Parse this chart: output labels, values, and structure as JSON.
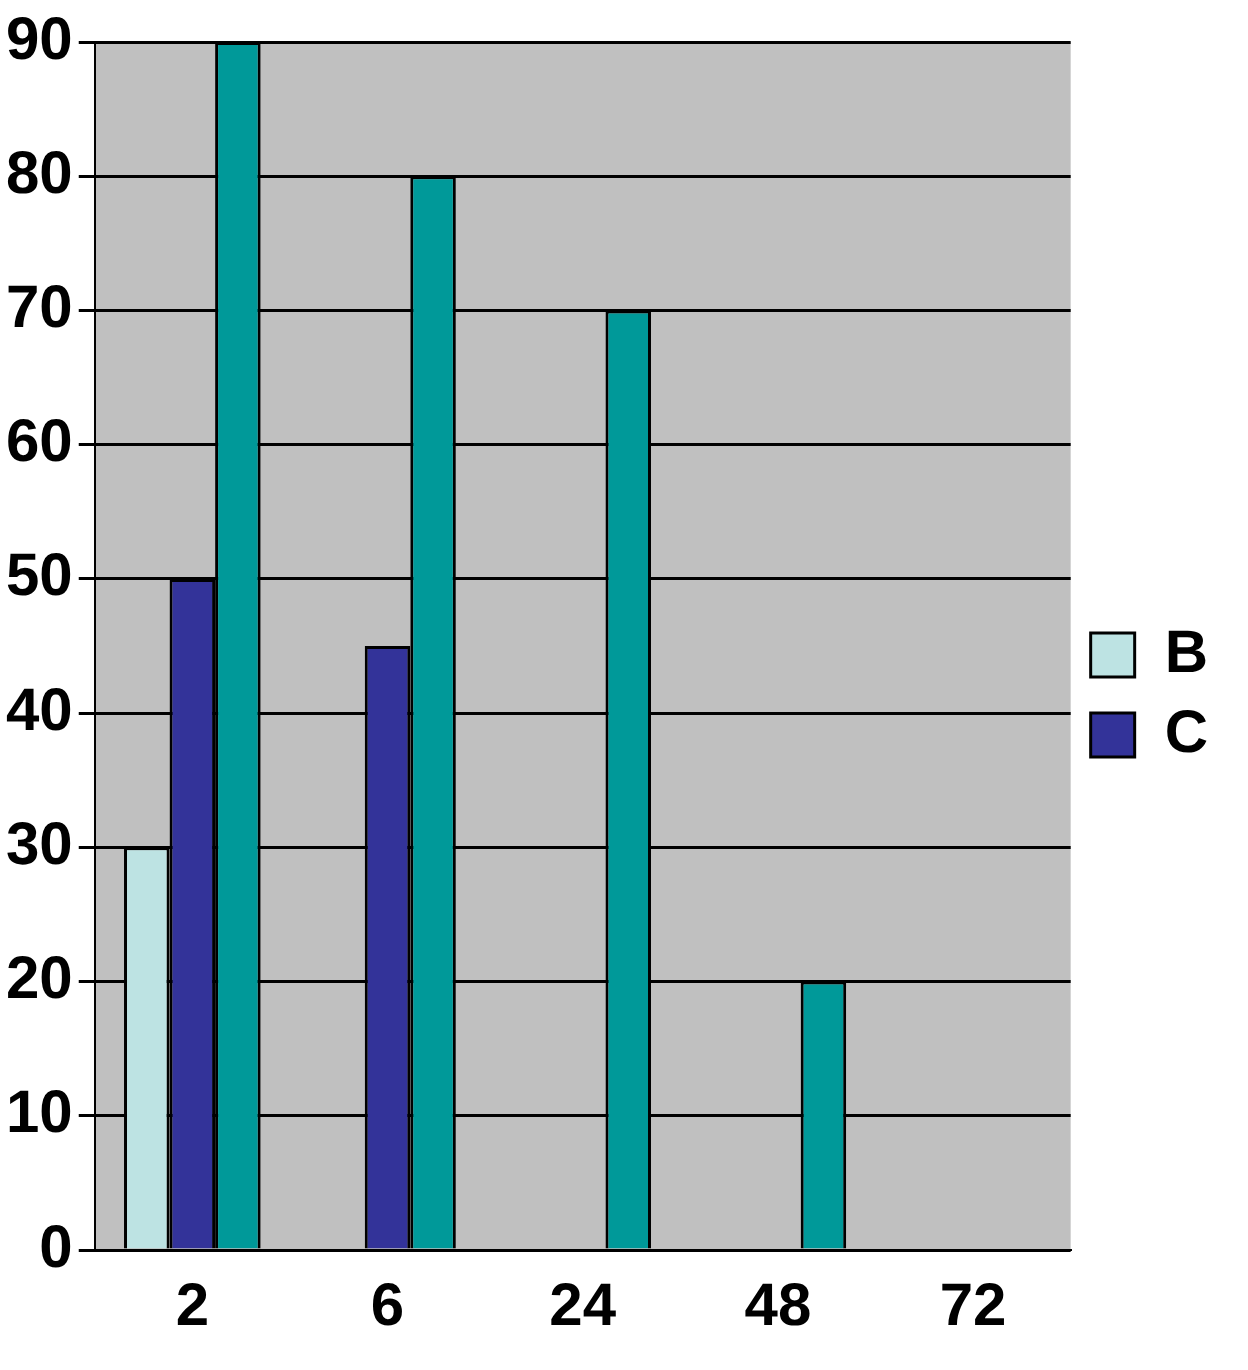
{
  "chart_data": {
    "type": "bar",
    "categories": [
      "2",
      "6",
      "24",
      "48",
      "72"
    ],
    "series": [
      {
        "name": "B",
        "color": "#bde3e3",
        "values": [
          30,
          0,
          0,
          0,
          0
        ]
      },
      {
        "name": "C",
        "color": "#333399",
        "values": [
          50,
          45,
          0,
          0,
          0
        ]
      },
      {
        "color": "#009999",
        "values": [
          90,
          80,
          70,
          20,
          0
        ]
      }
    ],
    "ylim": [
      0,
      90
    ],
    "yticks": [
      0,
      10,
      20,
      30,
      40,
      50,
      60,
      70,
      80,
      90
    ],
    "grid": "y",
    "legend": "right"
  }
}
